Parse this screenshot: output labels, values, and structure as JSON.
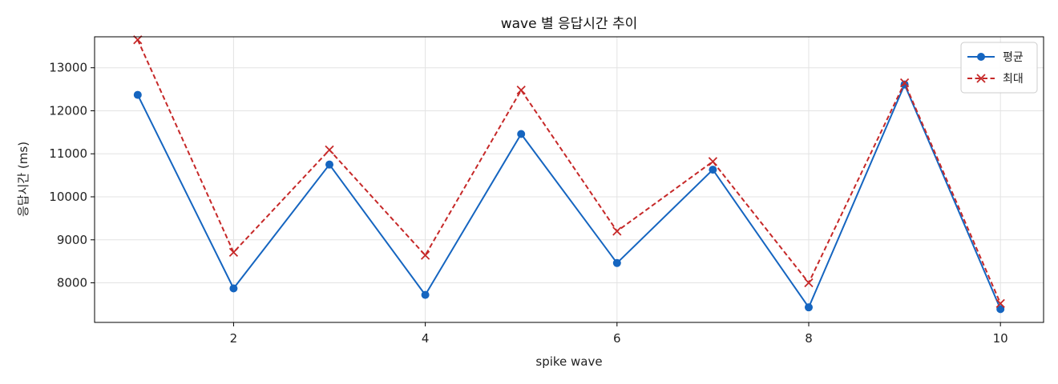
{
  "chart_data": {
    "type": "line",
    "title": "wave 별 응답시간 추이",
    "xlabel": "spike wave",
    "ylabel": "응답시간 (ms)",
    "x": [
      1,
      2,
      3,
      4,
      5,
      6,
      7,
      8,
      9,
      10
    ],
    "xlim": [
      0.55,
      10.45
    ],
    "ylim": [
      7080,
      13720
    ],
    "x_ticks": [
      2,
      4,
      6,
      8,
      10
    ],
    "y_ticks": [
      8000,
      9000,
      10000,
      11000,
      12000,
      13000
    ],
    "grid": true,
    "legend_position": "top-right",
    "series": [
      {
        "name": "평균",
        "color": "#1565c0",
        "line_style": "solid",
        "marker": "circle",
        "values": [
          12370,
          7870,
          10750,
          7720,
          11460,
          8460,
          10630,
          7430,
          12610,
          7390
        ]
      },
      {
        "name": "최대",
        "color": "#c62828",
        "line_style": "dashed",
        "marker": "x",
        "values": [
          13650,
          8710,
          11090,
          8640,
          12480,
          9200,
          10820,
          8000,
          12650,
          7520
        ]
      }
    ]
  }
}
